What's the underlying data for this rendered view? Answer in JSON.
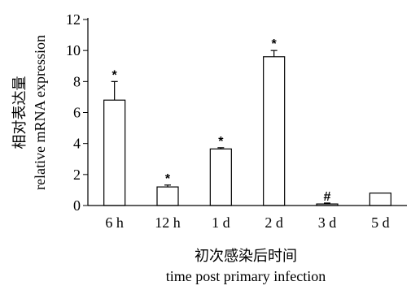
{
  "chart_data": {
    "type": "bar",
    "categories": [
      "6 h",
      "12 h",
      "1 d",
      "2 d",
      "3 d",
      "5 d"
    ],
    "values": [
      6.8,
      1.2,
      3.65,
      9.6,
      0.1,
      0.8
    ],
    "errors": [
      1.2,
      0.12,
      0.08,
      0.4,
      0.06,
      0
    ],
    "significance": [
      "*",
      "*",
      "*",
      "*",
      "#",
      ""
    ],
    "ylim": [
      0,
      12
    ],
    "yticks": [
      0,
      2,
      4,
      6,
      8,
      10,
      12
    ],
    "ylabel_cn": "相对表达量",
    "ylabel_en": "relative mRNA expression",
    "xlabel_cn": "初次感染后时间",
    "xlabel_en": "time post primary infection",
    "grid": false,
    "legend": "none",
    "bar_fill": "#ffffff",
    "bar_stroke": "#000000"
  }
}
